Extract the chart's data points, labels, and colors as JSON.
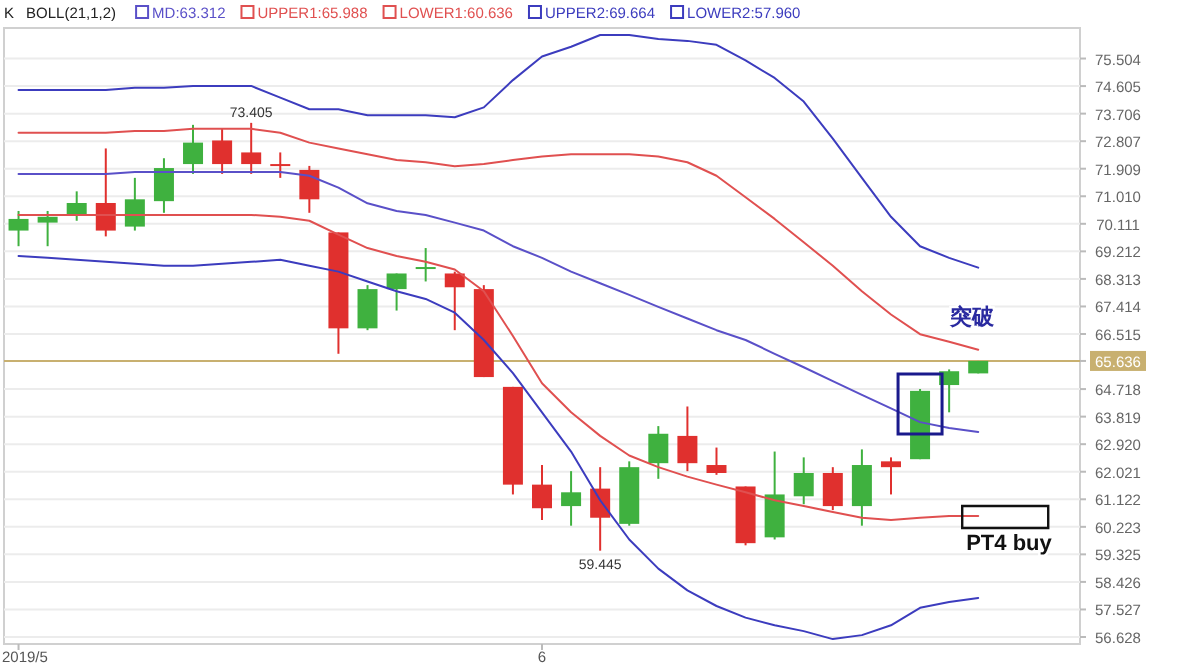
{
  "chart_data": {
    "type": "candlestick",
    "title": "K",
    "subtitle": "BOLL(21,1,2)",
    "categories": [
      "2019/5",
      null,
      null,
      null,
      null,
      null,
      null,
      null,
      null,
      null,
      null,
      null,
      null,
      null,
      null,
      null,
      null,
      null,
      "6",
      null,
      null,
      null,
      null,
      null,
      null,
      null,
      null,
      null,
      null,
      null,
      null,
      null,
      null,
      null
    ],
    "ohlc": [
      [
        69.89,
        70.53,
        69.38,
        70.27
      ],
      [
        70.15,
        70.53,
        69.38,
        70.34
      ],
      [
        70.4,
        71.17,
        70.21,
        70.79
      ],
      [
        70.79,
        72.57,
        69.7,
        69.89
      ],
      [
        70.02,
        71.61,
        69.89,
        70.91
      ],
      [
        70.85,
        72.25,
        70.47,
        71.93
      ],
      [
        72.06,
        73.34,
        71.74,
        72.76
      ],
      [
        72.83,
        73.21,
        71.74,
        72.06
      ],
      [
        72.44,
        73.405,
        71.74,
        72.06
      ],
      [
        72.06,
        72.44,
        71.61,
        72.0
      ],
      [
        71.87,
        72.0,
        70.47,
        70.91
      ],
      [
        69.83,
        69.83,
        65.87,
        66.7
      ],
      [
        66.7,
        68.11,
        66.64,
        67.98
      ],
      [
        67.98,
        68.49,
        67.28,
        68.49
      ],
      [
        68.66,
        69.32,
        68.23,
        68.7
      ],
      [
        68.49,
        68.55,
        66.64,
        68.04
      ],
      [
        67.98,
        68.11,
        65.11,
        65.11
      ],
      [
        64.79,
        64.79,
        61.28,
        61.6
      ],
      [
        61.6,
        62.24,
        60.45,
        60.83
      ],
      [
        60.9,
        62.04,
        60.26,
        61.35
      ],
      [
        61.47,
        62.17,
        59.445,
        60.52
      ],
      [
        60.32,
        62.36,
        60.26,
        62.17
      ],
      [
        62.3,
        63.51,
        61.79,
        63.26
      ],
      [
        63.19,
        64.15,
        62.04,
        62.3
      ],
      [
        62.24,
        62.81,
        61.92,
        61.98
      ],
      [
        61.54,
        61.54,
        59.62,
        59.69
      ],
      [
        59.88,
        62.68,
        59.81,
        61.28
      ],
      [
        61.22,
        62.49,
        60.96,
        61.98
      ],
      [
        61.98,
        62.17,
        60.77,
        60.9
      ],
      [
        60.9,
        62.75,
        60.26,
        62.24
      ],
      [
        62.36,
        62.49,
        61.28,
        62.17
      ],
      [
        62.43,
        64.72,
        62.43,
        64.66
      ],
      [
        64.85,
        65.36,
        63.96,
        65.3
      ],
      [
        65.23,
        65.636,
        65.23,
        65.636
      ]
    ],
    "series": [
      {
        "name": "MD:63.312",
        "type": "line",
        "color": "#5a50c8",
        "values": [
          71.74,
          71.74,
          71.74,
          71.74,
          71.8,
          71.8,
          71.8,
          71.8,
          71.8,
          71.8,
          71.68,
          71.29,
          70.78,
          70.53,
          70.4,
          70.15,
          69.89,
          69.38,
          69.0,
          68.55,
          68.17,
          67.79,
          67.4,
          67.02,
          66.64,
          66.32,
          65.87,
          65.43,
          64.98,
          64.53,
          64.09,
          63.64,
          63.45,
          63.32
        ]
      },
      {
        "name": "UPPER1:65.988",
        "type": "line",
        "color": "#e05050",
        "values": [
          73.08,
          73.08,
          73.08,
          73.08,
          73.14,
          73.14,
          73.21,
          73.21,
          73.21,
          73.08,
          72.76,
          72.57,
          72.38,
          72.19,
          72.12,
          71.99,
          72.06,
          72.19,
          72.31,
          72.38,
          72.38,
          72.38,
          72.31,
          72.12,
          71.68,
          70.98,
          70.27,
          69.51,
          68.74,
          67.91,
          67.15,
          66.51,
          66.26,
          66.0
        ]
      },
      {
        "name": "LOWER1:60.636",
        "type": "line",
        "color": "#e05050",
        "values": [
          70.4,
          70.4,
          70.4,
          70.4,
          70.4,
          70.4,
          70.4,
          70.4,
          70.4,
          70.34,
          70.21,
          69.76,
          69.32,
          69.06,
          68.87,
          68.62,
          67.91,
          66.45,
          64.91,
          63.96,
          63.19,
          62.55,
          62.17,
          61.86,
          61.6,
          61.35,
          61.09,
          60.9,
          60.71,
          60.52,
          60.45,
          60.52,
          60.58,
          60.58
        ]
      },
      {
        "name": "UPPER2:69.664",
        "type": "line",
        "color": "#3c3cbe",
        "values": [
          74.48,
          74.48,
          74.48,
          74.48,
          74.55,
          74.55,
          74.61,
          74.61,
          74.61,
          74.23,
          73.85,
          73.85,
          73.65,
          73.65,
          73.65,
          73.59,
          73.91,
          74.8,
          75.57,
          75.89,
          76.27,
          76.27,
          76.14,
          76.08,
          75.95,
          75.44,
          74.87,
          74.1,
          72.89,
          71.61,
          70.34,
          69.38,
          69.0,
          68.68
        ]
      },
      {
        "name": "LOWER2:57.960",
        "type": "line",
        "color": "#3c3cbe",
        "values": [
          69.06,
          69.0,
          68.94,
          68.87,
          68.81,
          68.74,
          68.74,
          68.81,
          68.87,
          68.94,
          68.74,
          68.55,
          68.23,
          67.91,
          67.66,
          67.21,
          66.32,
          65.24,
          63.96,
          62.68,
          61.09,
          59.81,
          58.86,
          58.15,
          57.64,
          57.26,
          57.01,
          56.82,
          56.56,
          56.69,
          57.01,
          57.58,
          57.77,
          57.9
        ]
      }
    ],
    "ylim": [
      56.4,
      76.5
    ],
    "yticks": [
      75.504,
      74.605,
      73.706,
      72.807,
      71.909,
      {
        "value": 71.01,
        "label": "71.010"
      },
      70.111,
      69.212,
      68.313,
      67.414,
      66.515,
      65.636,
      64.718,
      63.819,
      {
        "value": 62.92,
        "label": "62.920"
      },
      62.021,
      61.122,
      60.223,
      59.325,
      58.426,
      57.527,
      56.628
    ],
    "grid": "y",
    "legend": "top left",
    "ref_lines": [
      {
        "axis": "y",
        "value": 65.636,
        "color": "#c8b070"
      }
    ],
    "annotations": [
      {
        "text": "73.405",
        "y": 73.405
      },
      {
        "text": "59.445",
        "y": 59.445
      },
      "突破",
      "PT4 buy"
    ]
  }
}
